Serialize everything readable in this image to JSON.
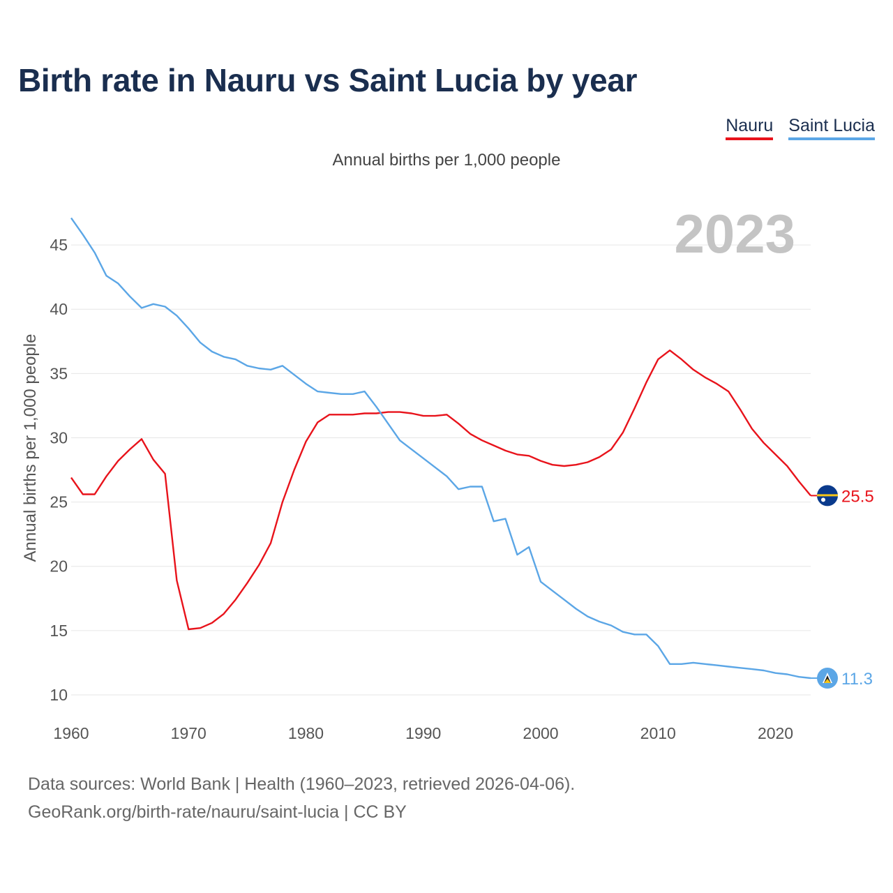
{
  "chart_data": {
    "type": "line",
    "title": "Birth rate in Nauru vs Saint Lucia by year",
    "subtitle": "Annual births per 1,000 people",
    "ylabel": "Annual births per 1,000 people",
    "xlabel": "",
    "year_label": "2023",
    "xlim": [
      1960,
      2023
    ],
    "ylim": [
      10,
      47.5
    ],
    "x_ticks": [
      1960,
      1970,
      1980,
      1990,
      2000,
      2010,
      2020
    ],
    "y_ticks": [
      10,
      15,
      20,
      25,
      30,
      35,
      40,
      45
    ],
    "legend": [
      "Nauru",
      "Saint Lucia"
    ],
    "colors": {
      "nauru": "#e8131b",
      "saint_lucia": "#5ba6e6"
    },
    "x": [
      1960,
      1961,
      1962,
      1963,
      1964,
      1965,
      1966,
      1967,
      1968,
      1969,
      1970,
      1971,
      1972,
      1973,
      1974,
      1975,
      1976,
      1977,
      1978,
      1979,
      1980,
      1981,
      1982,
      1983,
      1984,
      1985,
      1986,
      1987,
      1988,
      1989,
      1990,
      1991,
      1992,
      1993,
      1994,
      1995,
      1996,
      1997,
      1998,
      1999,
      2000,
      2001,
      2002,
      2003,
      2004,
      2005,
      2006,
      2007,
      2008,
      2009,
      2010,
      2011,
      2012,
      2013,
      2014,
      2015,
      2016,
      2017,
      2018,
      2019,
      2020,
      2021,
      2022,
      2023
    ],
    "series": [
      {
        "name": "Nauru",
        "end_label": "25.5",
        "values": [
          26.9,
          25.6,
          25.6,
          27.0,
          28.2,
          29.1,
          29.9,
          28.3,
          27.2,
          18.9,
          15.1,
          15.2,
          15.6,
          16.3,
          17.4,
          18.7,
          20.1,
          21.8,
          25.0,
          27.5,
          29.7,
          31.2,
          31.8,
          31.8,
          31.8,
          31.9,
          31.9,
          32.0,
          32.0,
          31.9,
          31.7,
          31.7,
          31.8,
          31.1,
          30.3,
          29.8,
          29.4,
          29.0,
          28.7,
          28.6,
          28.2,
          27.9,
          27.8,
          27.9,
          28.1,
          28.5,
          29.1,
          30.4,
          32.3,
          34.3,
          36.1,
          36.8,
          36.1,
          35.3,
          34.7,
          34.2,
          33.6,
          32.2,
          30.7,
          29.6,
          28.7,
          27.8,
          26.6,
          25.5
        ]
      },
      {
        "name": "Saint Lucia",
        "end_label": "11.3",
        "values": [
          47.1,
          45.8,
          44.4,
          42.6,
          42.0,
          41.0,
          40.1,
          40.4,
          40.2,
          39.5,
          38.5,
          37.4,
          36.7,
          36.3,
          36.1,
          35.6,
          35.4,
          35.3,
          35.6,
          34.9,
          34.2,
          33.6,
          33.5,
          33.4,
          33.4,
          33.6,
          32.4,
          31.1,
          29.8,
          29.1,
          28.4,
          27.7,
          27.0,
          26.0,
          26.2,
          26.2,
          23.5,
          23.7,
          20.9,
          21.5,
          18.8,
          18.1,
          17.4,
          16.7,
          16.1,
          15.7,
          15.4,
          14.9,
          14.7,
          14.7,
          13.8,
          12.4,
          12.4,
          12.5,
          12.4,
          12.3,
          12.2,
          12.1,
          12.0,
          11.9,
          11.7,
          11.6,
          11.4,
          11.3
        ]
      }
    ]
  },
  "footer": {
    "line1": "Data sources: World Bank | Health (1960–2023, retrieved 2026-04-06).",
    "line2": "GeoRank.org/birth-rate/nauru/saint-lucia | CC BY"
  }
}
